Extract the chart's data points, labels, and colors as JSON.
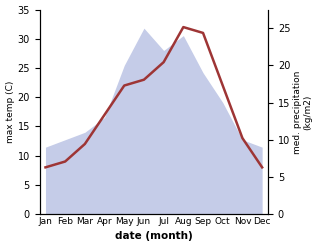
{
  "months": [
    "Jan",
    "Feb",
    "Mar",
    "Apr",
    "May",
    "Jun",
    "Jul",
    "Aug",
    "Sep",
    "Oct",
    "Nov",
    "Dec"
  ],
  "temp": [
    8,
    9,
    12,
    17,
    22,
    23,
    26,
    32,
    31,
    22,
    13,
    8
  ],
  "precip": [
    9,
    10,
    11,
    13,
    20,
    25,
    22,
    24,
    19,
    15,
    10,
    9
  ],
  "temp_color": "#9e3535",
  "precip_fill_color": "#c5cce8",
  "temp_ylim": [
    0,
    35
  ],
  "precip_ylim": [
    0,
    27.5
  ],
  "temp_yticks": [
    0,
    5,
    10,
    15,
    20,
    25,
    30,
    35
  ],
  "precip_yticks": [
    0,
    5,
    10,
    15,
    20,
    25
  ],
  "xlabel": "date (month)",
  "ylabel_left": "max temp (C)",
  "ylabel_right": "med. precipitation\n(kg/m2)",
  "background_color": "#ffffff"
}
